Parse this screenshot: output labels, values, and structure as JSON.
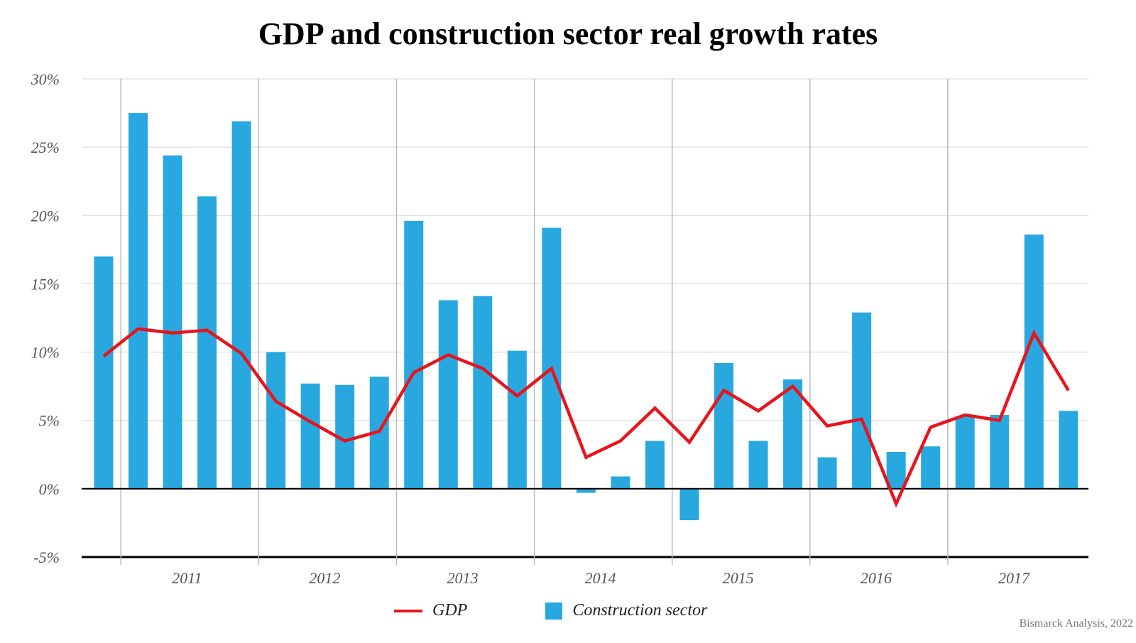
{
  "chart_data": {
    "type": "bar+line",
    "title": "GDP and construction sector real growth rates",
    "ylim": [
      -5,
      30
    ],
    "y_ticks": [
      30,
      25,
      20,
      15,
      10,
      5,
      0,
      -5
    ],
    "y_tick_labels": [
      "30%",
      "25%",
      "20%",
      "15%",
      "10%",
      "5%",
      "0%",
      "-5%"
    ],
    "x_tick_labels": [
      "2011",
      "2012",
      "2013",
      "2014",
      "2015",
      "2016",
      "2017"
    ],
    "periods_per_year": 4,
    "leading_periods_before_first_label": 1,
    "grid": "horizontal",
    "legend_position": "bottom",
    "series": [
      {
        "name": "GDP",
        "type": "line",
        "color": "#e8141c",
        "values": [
          9.7,
          11.7,
          11.4,
          11.6,
          9.9,
          6.4,
          4.9,
          3.5,
          4.2,
          8.5,
          9.8,
          8.8,
          6.8,
          8.8,
          2.3,
          3.5,
          5.9,
          3.4,
          7.2,
          5.7,
          7.5,
          4.6,
          5.1,
          -1.1,
          4.5,
          5.4,
          5.0,
          11.4,
          7.2
        ]
      },
      {
        "name": "Construction sector",
        "type": "bar",
        "color": "#29a8e0",
        "values": [
          17.0,
          27.5,
          24.4,
          21.4,
          26.9,
          10.0,
          7.7,
          7.6,
          8.2,
          19.6,
          13.8,
          14.1,
          10.1,
          19.1,
          -0.3,
          0.9,
          3.5,
          -2.3,
          9.2,
          3.5,
          8.0,
          2.3,
          12.9,
          2.7,
          3.1,
          5.3,
          5.4,
          18.6,
          5.7
        ]
      }
    ],
    "source": "Bismarck Analysis, 2022"
  }
}
